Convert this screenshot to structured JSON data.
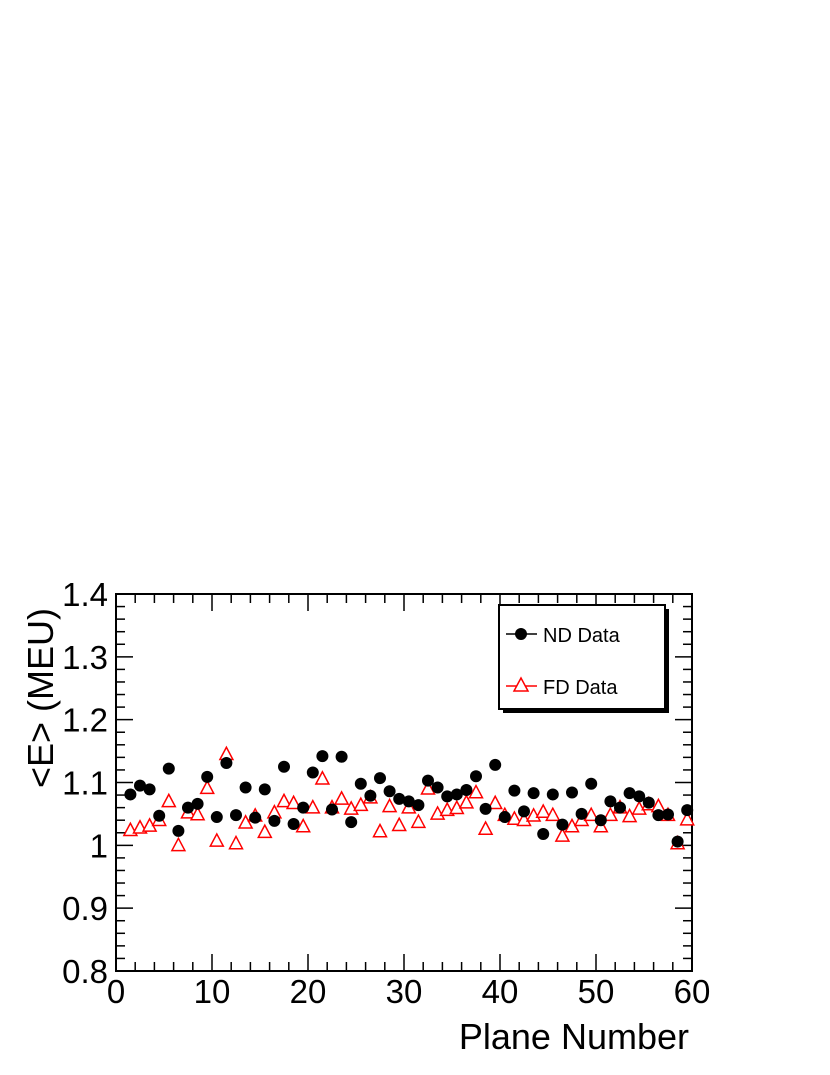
{
  "chart_data": {
    "type": "scatter",
    "xlabel": "Plane Number",
    "ylabel": "<E> (MEU)",
    "xlim": [
      0,
      60
    ],
    "ylim": [
      0.8,
      1.4
    ],
    "x_major_ticks": [
      0,
      10,
      20,
      30,
      40,
      50,
      60
    ],
    "x_tick_labels": [
      "0",
      "10",
      "20",
      "30",
      "40",
      "50",
      "60"
    ],
    "y_major_ticks": [
      0.8,
      0.9,
      1.0,
      1.1,
      1.2,
      1.3,
      1.4
    ],
    "y_tick_labels": [
      "0.8",
      "0.9",
      "1",
      "1.1",
      "1.2",
      "1.3",
      "1.4"
    ],
    "grid": false,
    "legend_position": "top-right",
    "legend_shadow": true,
    "x": [
      1.5,
      2.5,
      3.5,
      4.5,
      5.5,
      6.5,
      7.5,
      8.5,
      9.5,
      10.5,
      11.5,
      12.5,
      13.5,
      14.5,
      15.5,
      16.5,
      17.5,
      18.5,
      19.5,
      20.5,
      21.5,
      22.5,
      23.5,
      24.5,
      25.5,
      26.5,
      27.5,
      28.5,
      29.5,
      30.5,
      31.5,
      32.5,
      33.5,
      34.5,
      35.5,
      36.5,
      37.5,
      38.5,
      39.5,
      40.5,
      41.5,
      42.5,
      43.5,
      44.5,
      45.5,
      46.5,
      47.5,
      48.5,
      49.5,
      50.5,
      51.5,
      52.5,
      53.5,
      54.5,
      55.5,
      56.5,
      57.5,
      58.5,
      59.5
    ],
    "series": [
      {
        "name": "ND Data",
        "marker": "filled-circle",
        "color": "#000000",
        "values": [
          1.081,
          1.095,
          1.089,
          1.047,
          1.122,
          1.023,
          1.06,
          1.066,
          1.109,
          1.045,
          1.131,
          1.048,
          1.092,
          1.044,
          1.089,
          1.039,
          1.125,
          1.034,
          1.06,
          1.116,
          1.142,
          1.057,
          1.141,
          1.037,
          1.098,
          1.079,
          1.107,
          1.086,
          1.074,
          1.07,
          1.064,
          1.103,
          1.092,
          1.078,
          1.081,
          1.088,
          1.11,
          1.058,
          1.128,
          1.045,
          1.087,
          1.054,
          1.083,
          1.018,
          1.081,
          1.033,
          1.084,
          1.05,
          1.098,
          1.04,
          1.07,
          1.06,
          1.083,
          1.078,
          1.068,
          1.048,
          1.049,
          1.006,
          1.056
        ],
        "errors": [
          0.007,
          0.007,
          0.007,
          0.007,
          0.007,
          0.007,
          0.007,
          0.007,
          0.007,
          0.007,
          0.007,
          0.007,
          0.007,
          0.007,
          0.007,
          0.007,
          0.007,
          0.007,
          0.007,
          0.007,
          0.007,
          0.007,
          0.007,
          0.007,
          0.007,
          0.007,
          0.007,
          0.007,
          0.007,
          0.007,
          0.007,
          0.007,
          0.007,
          0.007,
          0.007,
          0.007,
          0.007,
          0.007,
          0.007,
          0.007,
          0.007,
          0.007,
          0.007,
          0.007,
          0.007,
          0.007,
          0.007,
          0.007,
          0.007,
          0.007,
          0.007,
          0.007,
          0.007,
          0.007,
          0.007,
          0.007,
          0.007,
          0.007,
          0.007
        ]
      },
      {
        "name": "FD Data",
        "marker": "open-triangle",
        "color": "#ff0000",
        "values": [
          1.024,
          1.028,
          1.031,
          1.04,
          1.07,
          1.0,
          1.052,
          1.049,
          1.091,
          1.007,
          1.145,
          1.003,
          1.036,
          1.047,
          1.021,
          1.052,
          1.07,
          1.067,
          1.03,
          1.06,
          1.106,
          1.06,
          1.074,
          1.058,
          1.064,
          1.076,
          1.022,
          1.062,
          1.032,
          1.06,
          1.037,
          1.09,
          1.05,
          1.056,
          1.059,
          1.068,
          1.084,
          1.026,
          1.067,
          1.048,
          1.042,
          1.04,
          1.047,
          1.053,
          1.048,
          1.015,
          1.03,
          1.04,
          1.048,
          1.03,
          1.048,
          1.06,
          1.046,
          1.058,
          1.065,
          1.062,
          1.048,
          1.003,
          1.041
        ],
        "errors": [
          0.006,
          0.006,
          0.006,
          0.006,
          0.006,
          0.006,
          0.006,
          0.006,
          0.006,
          0.006,
          0.006,
          0.006,
          0.006,
          0.006,
          0.006,
          0.006,
          0.006,
          0.006,
          0.006,
          0.006,
          0.006,
          0.006,
          0.006,
          0.006,
          0.006,
          0.006,
          0.006,
          0.006,
          0.006,
          0.006,
          0.006,
          0.006,
          0.006,
          0.006,
          0.006,
          0.006,
          0.006,
          0.006,
          0.006,
          0.006,
          0.006,
          0.006,
          0.006,
          0.006,
          0.006,
          0.006,
          0.006,
          0.006,
          0.006,
          0.006,
          0.006,
          0.006,
          0.006,
          0.006,
          0.006,
          0.006,
          0.006,
          0.006,
          0.006
        ]
      }
    ]
  }
}
